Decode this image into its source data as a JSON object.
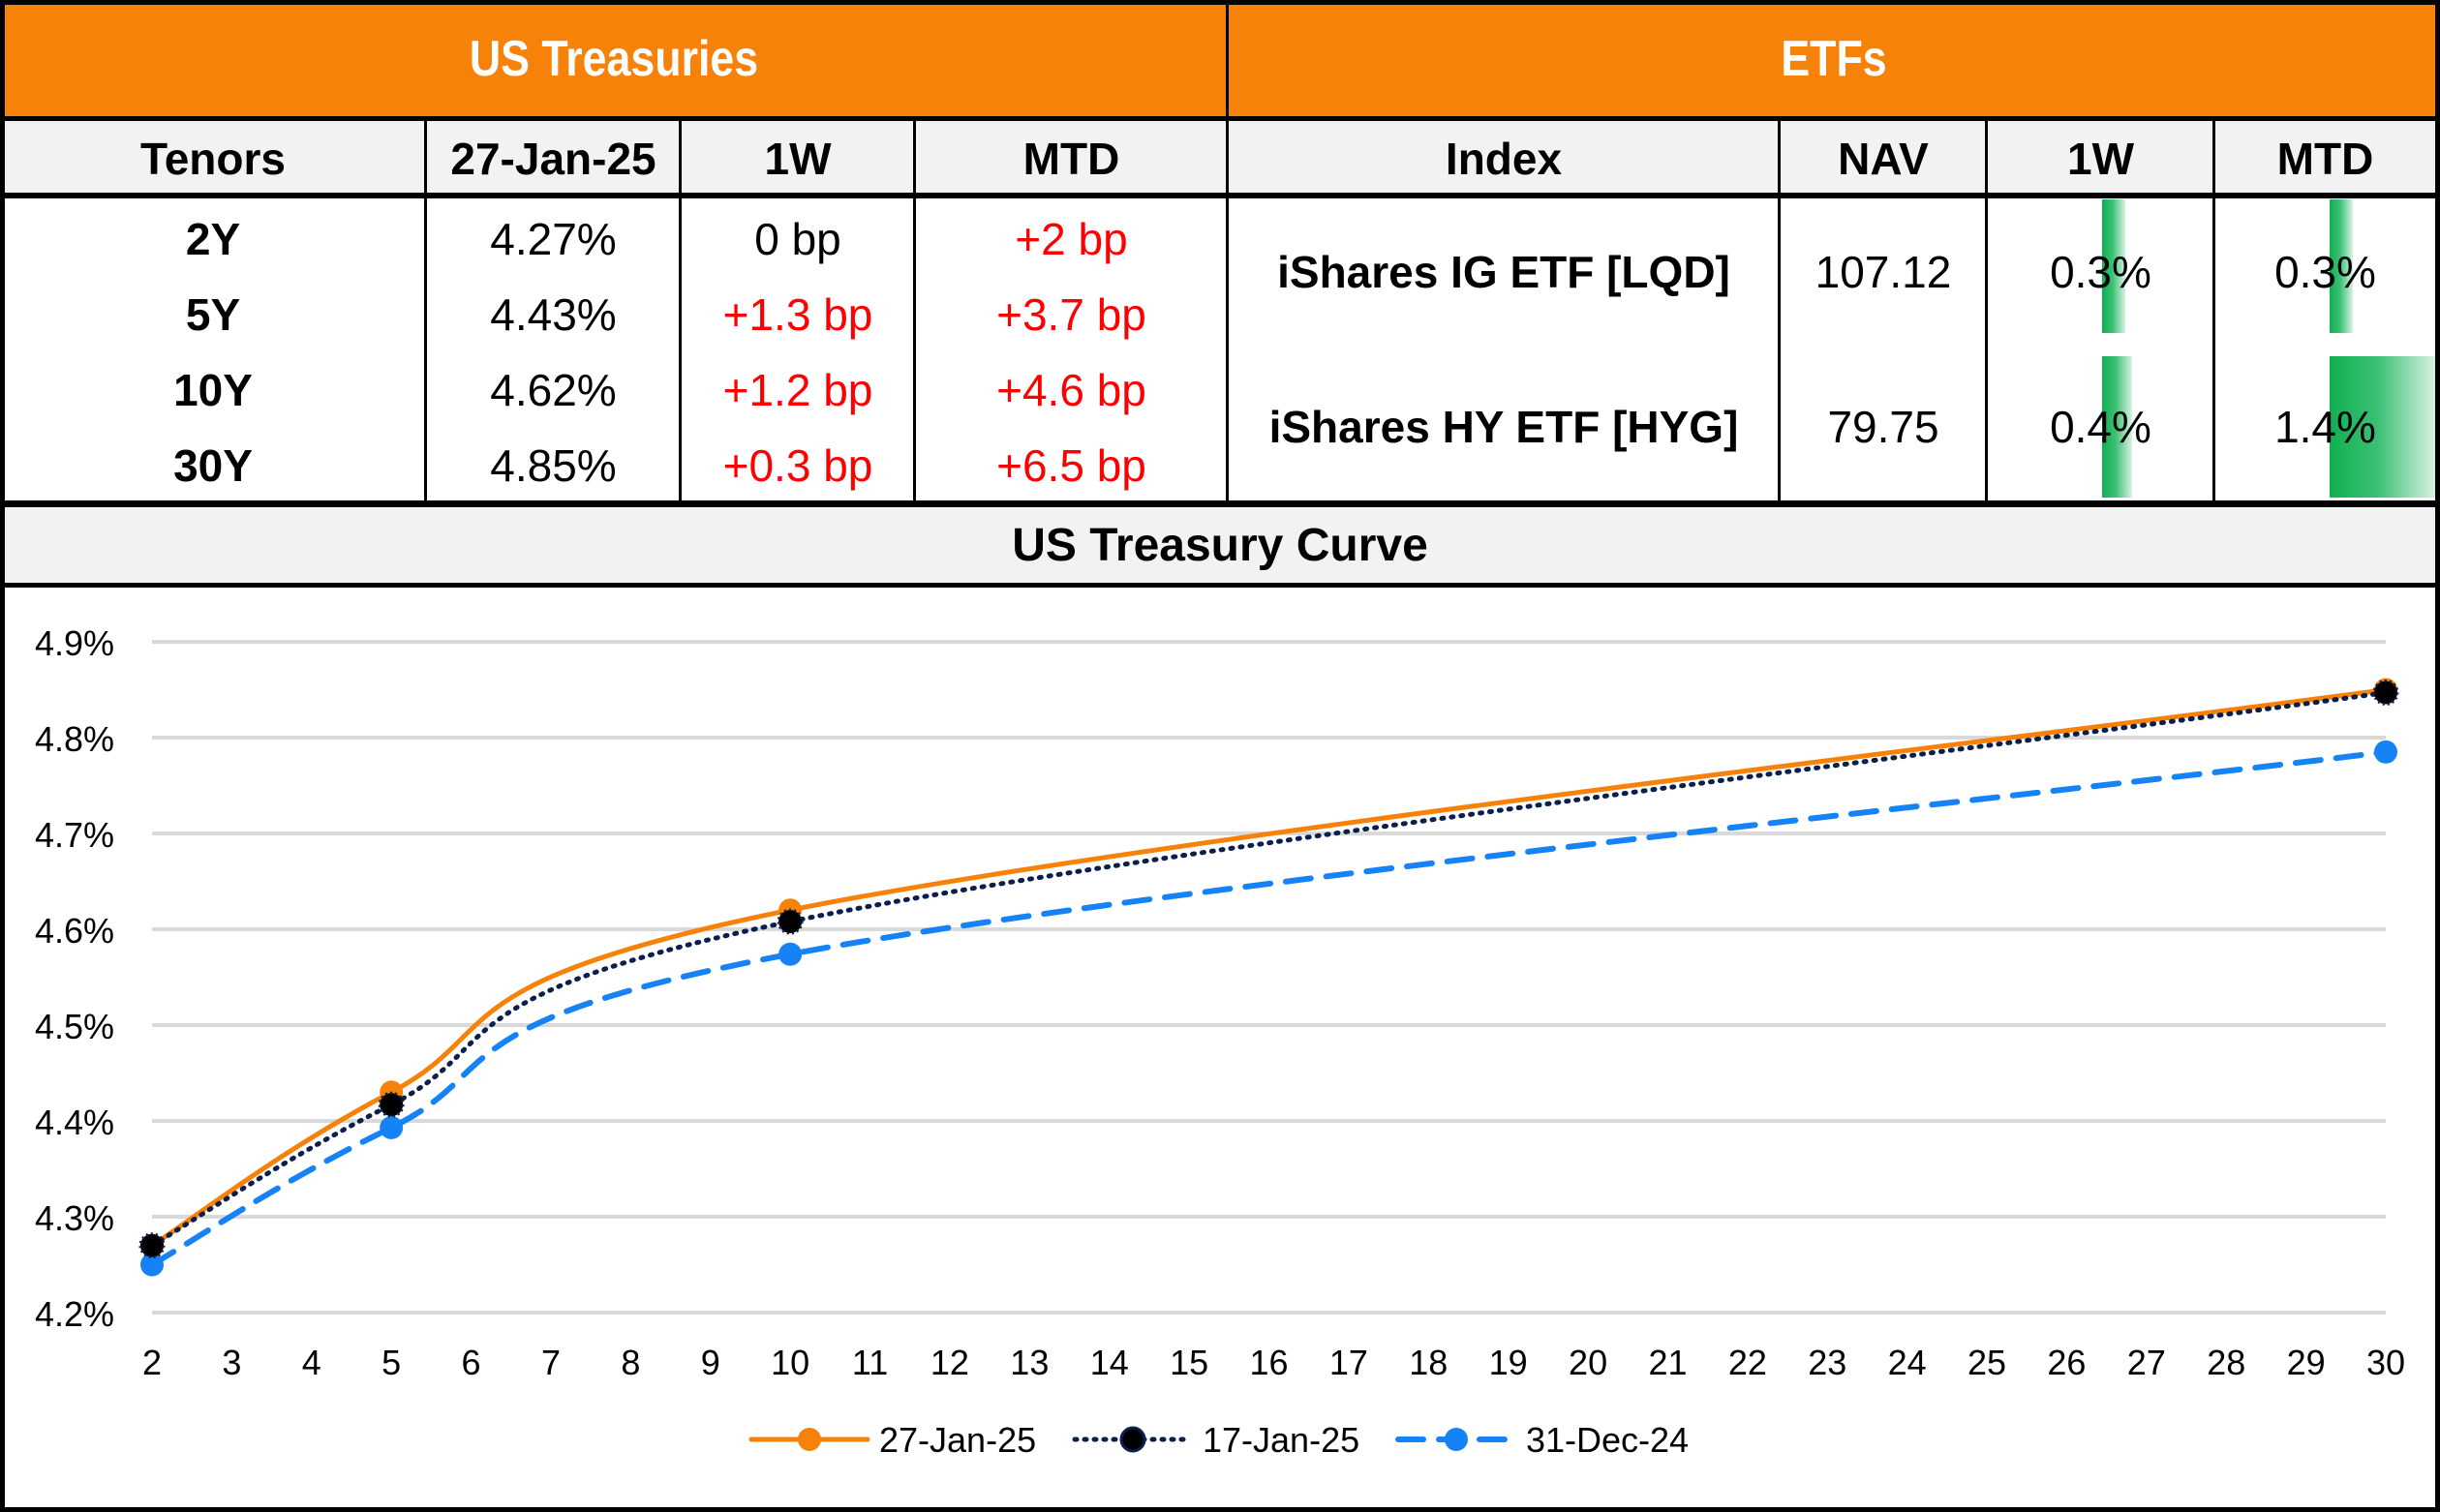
{
  "treasuries": {
    "title": "US Treasuries",
    "headers": [
      "Tenors",
      "27-Jan-25",
      "1W",
      "MTD"
    ],
    "rows": [
      {
        "tenor": "2Y",
        "yield": "4.27%",
        "w1": "0 bp",
        "w1_neg": false,
        "mtd": "+2 bp"
      },
      {
        "tenor": "5Y",
        "yield": "4.43%",
        "w1": "+1.3 bp",
        "w1_neg": true,
        "mtd": "+3.7 bp"
      },
      {
        "tenor": "10Y",
        "yield": "4.62%",
        "w1": "+1.2 bp",
        "w1_neg": true,
        "mtd": "+4.6 bp"
      },
      {
        "tenor": "30Y",
        "yield": "4.85%",
        "w1": "+0.3 bp",
        "w1_neg": true,
        "mtd": "+6.5 bp"
      }
    ]
  },
  "etfs": {
    "title": "ETFs",
    "headers": [
      "Index",
      "NAV",
      "1W",
      "MTD"
    ],
    "rows": [
      {
        "index": "iShares IG ETF [LQD]",
        "nav": "107.12",
        "w1": "0.3%",
        "w1_value": 0.3,
        "mtd": "0.3%",
        "mtd_value": 0.3
      },
      {
        "index": "iShares HY ETF [HYG]",
        "nav": "79.75",
        "w1": "0.4%",
        "w1_value": 0.4,
        "mtd": "1.4%",
        "mtd_value": 1.4
      }
    ],
    "databar_max": 1.4,
    "databar_color": "#0fb050"
  },
  "colors": {
    "header_orange": "#f7820a",
    "header_gray": "#f2f2f2",
    "negative_change": "#ff0000"
  },
  "chart_data": {
    "type": "line",
    "title": "US Treasury Curve",
    "xlabel": "",
    "ylabel": "",
    "x": [
      2,
      5,
      10,
      30
    ],
    "xticks": [
      2,
      3,
      4,
      5,
      6,
      7,
      8,
      9,
      10,
      11,
      12,
      13,
      14,
      15,
      16,
      17,
      18,
      19,
      20,
      21,
      22,
      23,
      24,
      25,
      26,
      27,
      28,
      29,
      30
    ],
    "xlim": [
      2,
      30
    ],
    "yticks": [
      4.2,
      4.3,
      4.4,
      4.5,
      4.6,
      4.7,
      4.8,
      4.9
    ],
    "ytick_labels": [
      "4.2%",
      "4.3%",
      "4.4%",
      "4.5%",
      "4.6%",
      "4.7%",
      "4.8%",
      "4.9%"
    ],
    "ylim": [
      4.2,
      4.9
    ],
    "grid": "horizontal",
    "smoothed": true,
    "legend_position": "bottom",
    "series": [
      {
        "name": "27-Jan-25",
        "values": [
          4.27,
          4.43,
          4.62,
          4.85
        ],
        "color": "#f7820a",
        "style": "solid",
        "marker": "circle-orange"
      },
      {
        "name": "17-Jan-25",
        "values": [
          4.27,
          4.417,
          4.608,
          4.847
        ],
        "color": "#0b1f4f",
        "style": "dotted",
        "marker": "circle-black"
      },
      {
        "name": "31-Dec-24",
        "values": [
          4.25,
          4.393,
          4.574,
          4.785
        ],
        "color": "#1583f5",
        "style": "dashed",
        "marker": "circle-blue"
      }
    ]
  }
}
